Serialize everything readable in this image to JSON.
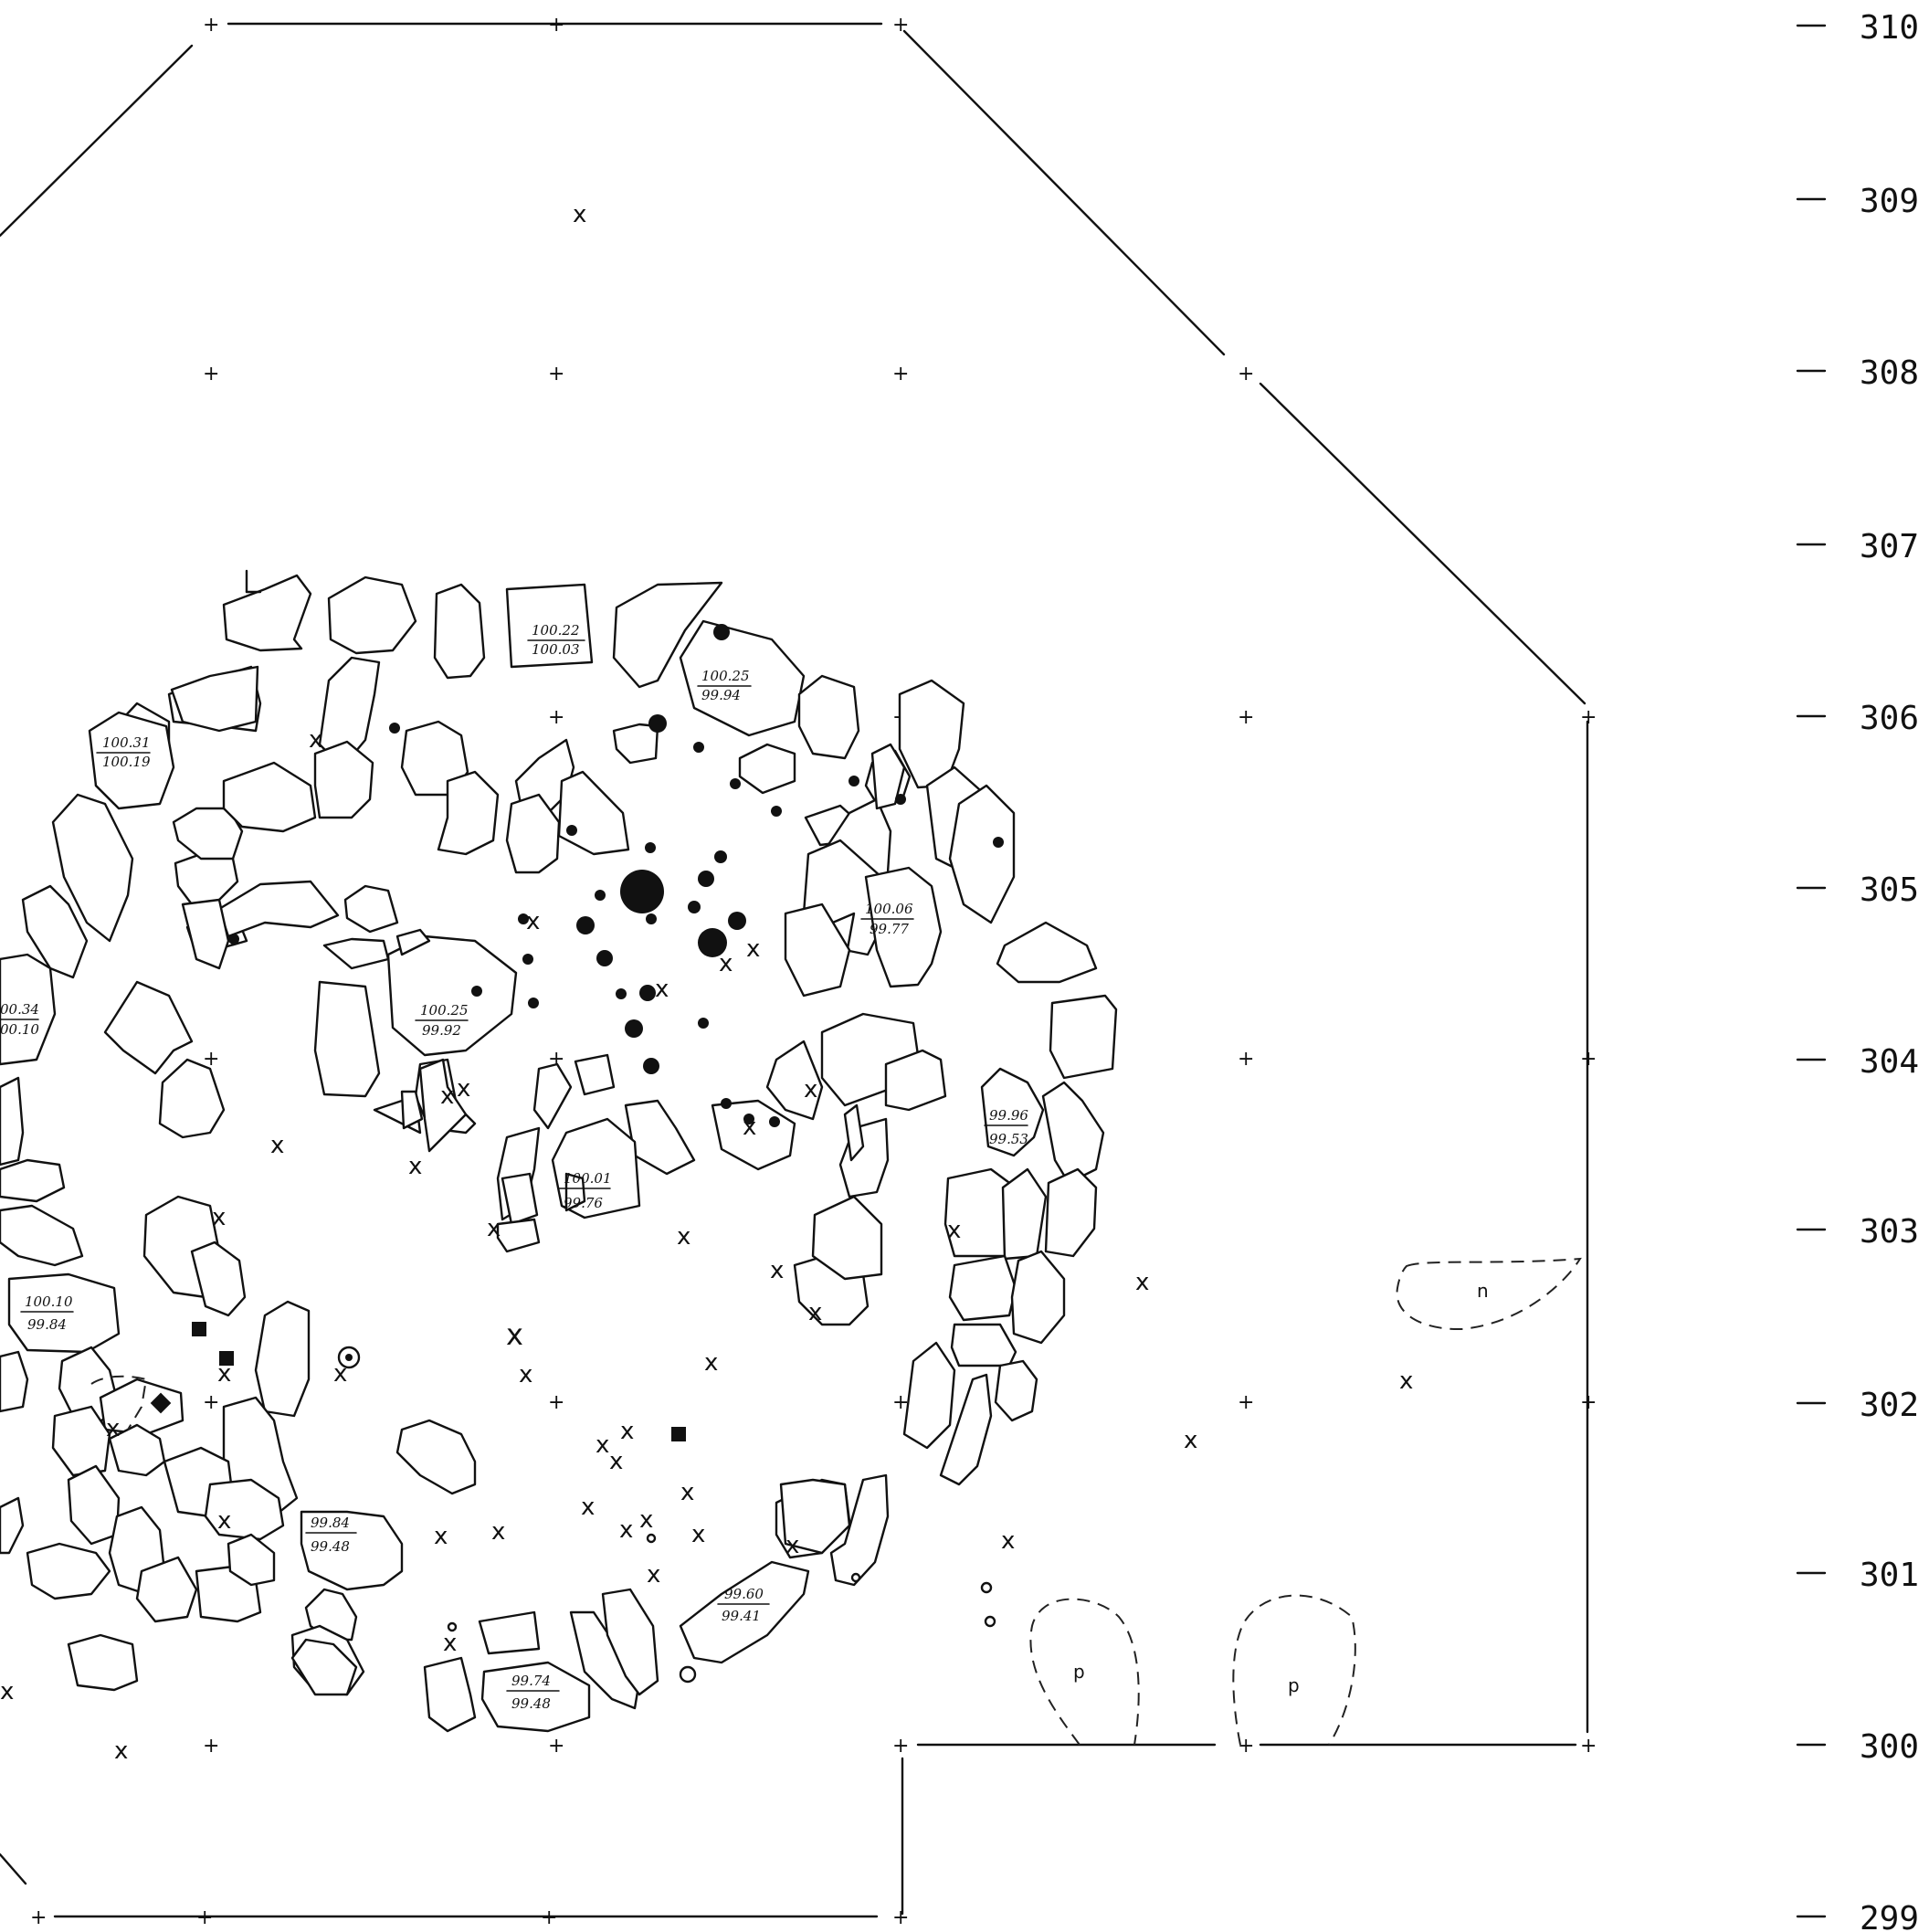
{
  "scale": {
    "labels": [
      "310",
      "309",
      "308",
      "307",
      "306",
      "305",
      "304",
      "303",
      "302",
      "301",
      "300",
      "299"
    ]
  },
  "elevations": [
    {
      "top": "100.22",
      "bottom": "100.03"
    },
    {
      "top": "100.25",
      "bottom": "99.94"
    },
    {
      "top": "100.31",
      "bottom": "100.19"
    },
    {
      "top": "100.06",
      "bottom": "99.77"
    },
    {
      "top": "100.25",
      "bottom": "99.92"
    },
    {
      "top": "00.34",
      "bottom": "00.10"
    },
    {
      "top": "99.96",
      "bottom": "99.53"
    },
    {
      "top": "100.01",
      "bottom": "99.76"
    },
    {
      "top": "100.10",
      "bottom": "99.84"
    },
    {
      "top": "99.84",
      "bottom": "99.48"
    },
    {
      "top": "99.60",
      "bottom": "99.41"
    },
    {
      "top": "99.74",
      "bottom": "99.48"
    }
  ],
  "feature_labels": {
    "n": "n",
    "p1": "p",
    "p2": "p"
  },
  "find_marker": "x"
}
